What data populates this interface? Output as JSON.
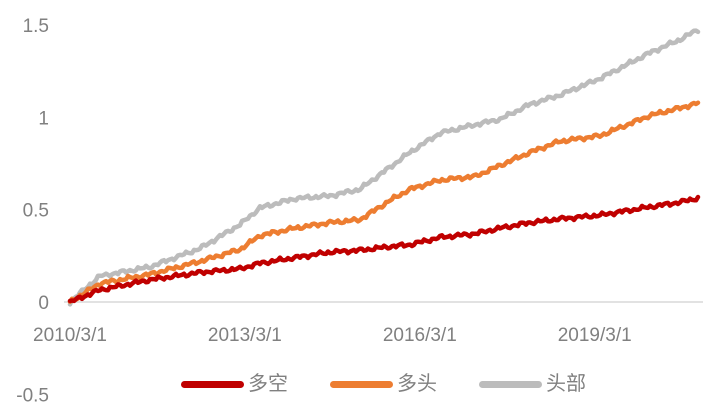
{
  "chart_data": {
    "type": "line",
    "title": "",
    "grid": false,
    "background": "#ffffff",
    "axis_color": "#d9d9d9",
    "label_color": "#808080",
    "legend_position": "bottom",
    "x_axis": {
      "tick_labels": [
        "2010/3/1",
        "2013/3/1",
        "2016/3/1",
        "2019/3/1"
      ],
      "tick_years": [
        2010.17,
        2013.17,
        2016.17,
        2019.17
      ],
      "range_years": [
        2010.17,
        2020.97
      ]
    },
    "y_axis": {
      "tick_labels": [
        "1.5",
        "1",
        "0.5",
        "0",
        "-0.5"
      ],
      "tick_values": [
        1.5,
        1.0,
        0.5,
        0.0,
        -0.5
      ],
      "range": [
        -0.5,
        1.5
      ]
    },
    "series": [
      {
        "name": "多空",
        "color": "#C00000",
        "x": [
          2010.17,
          2010.68,
          2011.54,
          2012.4,
          2013.09,
          2013.43,
          2014.03,
          2014.63,
          2015.14,
          2015.66,
          2016.0,
          2016.52,
          2017.12,
          2017.55,
          2018.06,
          2018.57,
          2019.26,
          2020.12,
          2020.63,
          2020.97
        ],
        "values": [
          0,
          0.065,
          0.12,
          0.16,
          0.18,
          0.21,
          0.24,
          0.27,
          0.28,
          0.3,
          0.31,
          0.35,
          0.37,
          0.4,
          0.43,
          0.45,
          0.47,
          0.515,
          0.54,
          0.565
        ]
      },
      {
        "name": "多头",
        "color": "#ED7D31",
        "x": [
          2010.17,
          2010.68,
          2011.54,
          2012.4,
          2013.09,
          2013.43,
          2014.03,
          2014.63,
          2015.14,
          2015.66,
          2016.0,
          2016.52,
          2017.12,
          2017.55,
          2018.06,
          2018.57,
          2019.26,
          2020.12,
          2020.63,
          2020.97
        ],
        "values": [
          0,
          0.1,
          0.15,
          0.22,
          0.285,
          0.36,
          0.4,
          0.43,
          0.445,
          0.55,
          0.61,
          0.66,
          0.68,
          0.74,
          0.81,
          0.87,
          0.9,
          1.01,
          1.05,
          1.08
        ]
      },
      {
        "name": "头部",
        "color": "#BCBCBC",
        "x": [
          2010.17,
          2010.68,
          2011.54,
          2012.4,
          2013.09,
          2013.43,
          2014.03,
          2014.63,
          2015.14,
          2015.66,
          2016.0,
          2016.52,
          2017.12,
          2017.55,
          2018.06,
          2018.57,
          2019.26,
          2020.12,
          2020.63,
          2020.97
        ],
        "values": [
          0,
          0.14,
          0.19,
          0.29,
          0.42,
          0.51,
          0.56,
          0.575,
          0.61,
          0.73,
          0.81,
          0.915,
          0.96,
          0.99,
          1.07,
          1.12,
          1.21,
          1.35,
          1.42,
          1.48
        ]
      }
    ]
  },
  "legend": {
    "items": [
      {
        "label": "多空",
        "color": "#C00000"
      },
      {
        "label": "多头",
        "color": "#ED7D31"
      },
      {
        "label": "头部",
        "color": "#BCBCBC"
      }
    ]
  }
}
